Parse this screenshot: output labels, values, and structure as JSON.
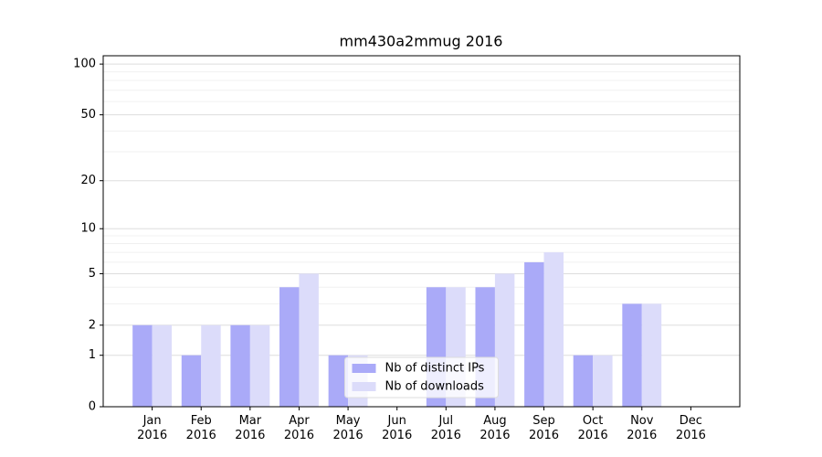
{
  "chart_data": {
    "type": "bar",
    "title": "mm430a2mmug 2016",
    "categories": [
      "Jan\n2016",
      "Feb\n2016",
      "Mar\n2016",
      "Apr\n2016",
      "May\n2016",
      "Jun\n2016",
      "Jul\n2016",
      "Aug\n2016",
      "Sep\n2016",
      "Oct\n2016",
      "Nov\n2016",
      "Dec\n2016"
    ],
    "series": [
      {
        "name": "Nb of distinct IPs",
        "color": "#aaaaf8",
        "values": [
          2,
          1,
          2,
          4,
          1,
          0,
          4,
          4,
          6,
          1,
          3,
          0
        ]
      },
      {
        "name": "Nb of downloads",
        "color": "#dcdcfa",
        "values": [
          2,
          2,
          2,
          5,
          1,
          0,
          4,
          5,
          7,
          1,
          3,
          0
        ]
      }
    ],
    "yscale": "log1p",
    "ylim": [
      0,
      112
    ],
    "yticks": [
      0,
      1,
      2,
      5,
      10,
      20,
      50,
      100
    ],
    "yminor": [
      3,
      4,
      6,
      7,
      8,
      9,
      30,
      40,
      60,
      70,
      80,
      90
    ],
    "grid": true,
    "legend": "lower center"
  }
}
